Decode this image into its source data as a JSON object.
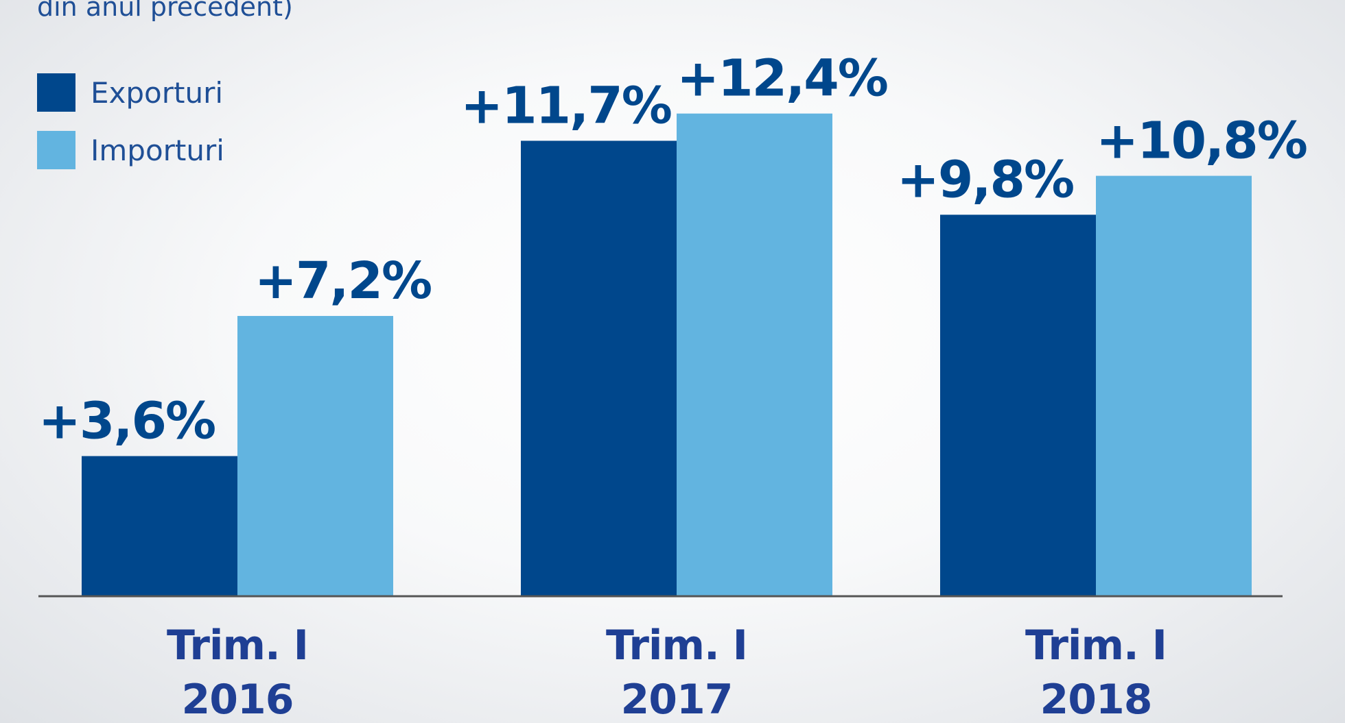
{
  "chart_data": {
    "type": "bar",
    "subtitle": "din anul precedent)",
    "categories": [
      [
        "Trim. I",
        "2016"
      ],
      [
        "Trim. I",
        "2017"
      ],
      [
        "Trim. I",
        "2018"
      ]
    ],
    "series": [
      {
        "name": "Exporturi",
        "color": "#00478c",
        "values": [
          3.6,
          11.7,
          9.8
        ],
        "labels": [
          "+3,6%",
          "+11,7%",
          "+9,8%"
        ]
      },
      {
        "name": "Importuri",
        "color": "#62b4e0",
        "values": [
          7.2,
          12.4,
          10.8
        ],
        "labels": [
          "+7,2%",
          "+12,4%",
          "+10,8%"
        ]
      }
    ],
    "legend_position": "top-left",
    "grid": false,
    "label_colors": {
      "value_labels": "#00478c",
      "category_labels": "#1f3f94",
      "axis": "#555555"
    }
  }
}
